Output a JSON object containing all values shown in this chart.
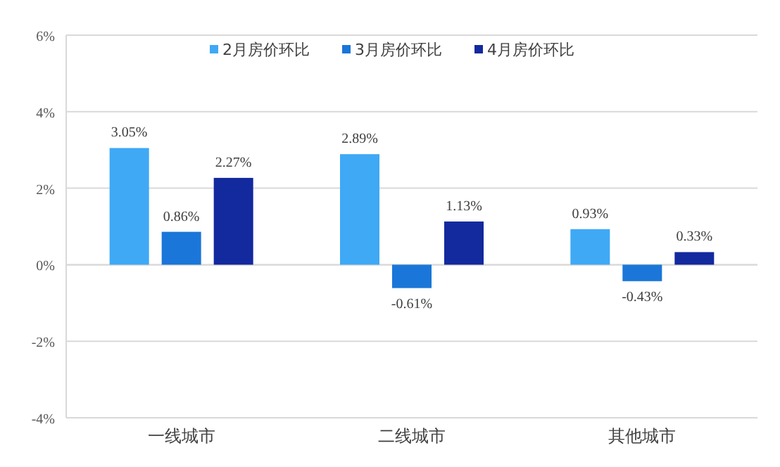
{
  "chart_data": {
    "type": "bar",
    "categories": [
      "一线城市",
      "二线城市",
      "其他城市"
    ],
    "series": [
      {
        "name": "2月房价环比",
        "color": "#3fa9f5",
        "values": [
          3.05,
          2.89,
          0.93
        ],
        "value_labels": [
          "3.05%",
          "2.89%",
          "0.93%"
        ]
      },
      {
        "name": "3月房价环比",
        "color": "#1a76d8",
        "values": [
          0.86,
          -0.61,
          -0.43
        ],
        "value_labels": [
          "0.86%",
          "-0.61%",
          "-0.43%"
        ]
      },
      {
        "name": "4月房价环比",
        "color": "#13299e",
        "values": [
          2.27,
          1.13,
          0.33
        ],
        "value_labels": [
          "2.27%",
          "1.13%",
          "0.33%"
        ]
      }
    ],
    "ylim": [
      -4,
      6
    ],
    "yticks": [
      {
        "value": -4,
        "label": "-4%"
      },
      {
        "value": -2,
        "label": "-2%"
      },
      {
        "value": 0,
        "label": "0%"
      },
      {
        "value": 2,
        "label": "2%"
      },
      {
        "value": 4,
        "label": "4%"
      },
      {
        "value": 6,
        "label": "6%"
      }
    ],
    "grid": "y",
    "legend": "top"
  }
}
